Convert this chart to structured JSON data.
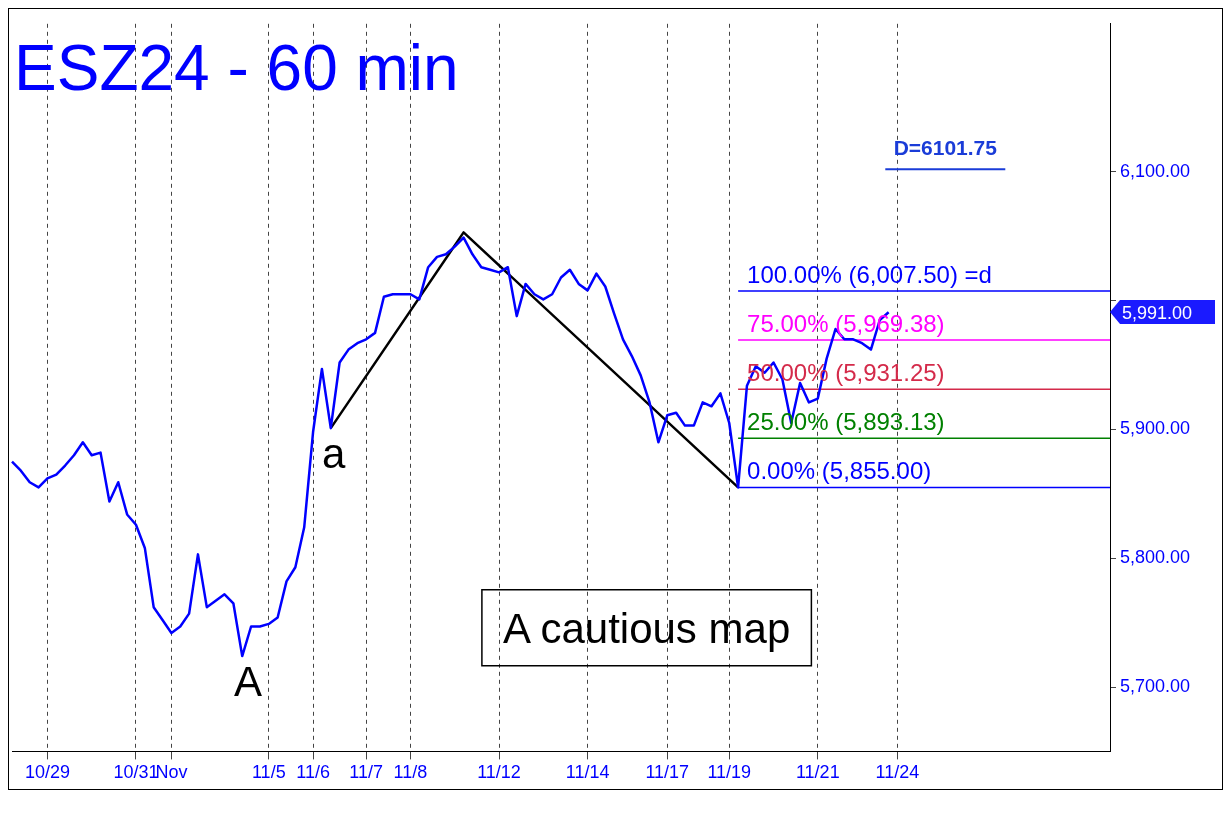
{
  "chart_data": {
    "type": "line",
    "title": "ESZ24 - 60 min",
    "categories": [
      null,
      null,
      null,
      null,
      "10/29",
      null,
      null,
      null,
      null,
      null,
      null,
      null,
      null,
      null,
      "10/31",
      null,
      null,
      null,
      "Nov",
      null,
      null,
      null,
      null,
      null,
      null,
      null,
      null,
      null,
      null,
      "11/5",
      null,
      null,
      null,
      null,
      "11/6",
      null,
      null,
      null,
      null,
      null,
      "11/7",
      null,
      null,
      null,
      null,
      "11/8",
      null,
      null,
      null,
      null,
      null,
      null,
      null,
      null,
      null,
      "11/12",
      null,
      null,
      null,
      null,
      null,
      null,
      null,
      null,
      null,
      "11/14",
      null,
      null,
      null,
      null,
      null,
      null,
      null,
      null,
      "11/17",
      null,
      null,
      null,
      null,
      null,
      null,
      "11/19",
      null,
      null,
      null,
      null,
      null,
      null,
      null,
      null,
      null,
      "11/21",
      null,
      null,
      null,
      null,
      null,
      null,
      null,
      null,
      "11/24",
      null,
      null,
      null,
      null,
      null,
      null,
      null,
      null,
      null,
      null,
      null,
      null,
      null,
      null,
      null,
      null,
      null,
      null,
      null,
      null,
      null,
      null,
      null,
      null
    ],
    "series": [
      {
        "color": "#0000ff",
        "values": [
          5875,
          5868,
          5859,
          5855,
          5862,
          5865,
          5872,
          5880,
          5890,
          5880,
          5882,
          5844,
          5859,
          5834,
          5826,
          5808,
          5762,
          5752,
          5742,
          5747,
          5757,
          5803,
          5762,
          5767,
          5772,
          5765,
          5724,
          5747,
          5747,
          5749,
          5754,
          5782,
          5793,
          5824,
          5898,
          5947,
          5901,
          5952,
          5962,
          5967,
          5970,
          5975,
          6003,
          6005,
          6005,
          6005,
          6001,
          6026,
          6034,
          6036,
          6042,
          6049,
          6036,
          6026,
          6024,
          6022,
          6026,
          5988,
          6013,
          6005,
          6001,
          6005,
          6018,
          6024,
          6013,
          6008,
          6021,
          6011,
          5990,
          5970,
          5957,
          5942,
          5921,
          5890,
          5911,
          5913,
          5903,
          5903,
          5921,
          5918,
          5928,
          5905,
          5855,
          5934,
          5949,
          5944,
          5952,
          5939,
          5905,
          5936,
          5921,
          5924,
          5955,
          5978,
          5970,
          5970,
          5967,
          5962,
          5985,
          5991,
          null,
          null,
          null,
          null,
          null,
          null,
          null,
          null,
          null,
          null,
          null,
          null,
          null,
          null,
          null,
          null,
          null,
          null,
          null,
          null,
          null,
          null,
          null,
          null,
          null
        ]
      },
      {
        "color": "#000000",
        "values": [
          null,
          null,
          null,
          null,
          null,
          null,
          null,
          null,
          null,
          null,
          null,
          null,
          null,
          null,
          null,
          null,
          null,
          null,
          null,
          null,
          null,
          null,
          null,
          null,
          null,
          null,
          null,
          null,
          null,
          null,
          null,
          null,
          null,
          null,
          null,
          null,
          5901,
          null,
          null,
          null,
          null,
          null,
          null,
          null,
          null,
          null,
          null,
          null,
          null,
          null,
          null,
          6053,
          null,
          null,
          null,
          null,
          null,
          null,
          null,
          null,
          null,
          null,
          null,
          null,
          null,
          null,
          null,
          null,
          null,
          null,
          null,
          null,
          null,
          null,
          null,
          null,
          null,
          null,
          null,
          null,
          null,
          null,
          5855,
          null,
          null,
          null,
          null,
          null,
          null,
          null,
          null,
          null,
          null,
          null,
          null,
          null,
          null,
          null,
          null,
          null,
          null,
          null,
          null,
          null,
          null,
          null,
          null,
          null,
          null,
          null,
          null,
          null,
          null,
          null,
          null,
          null,
          null,
          null,
          null,
          null,
          null,
          null,
          null,
          null,
          null
        ]
      }
    ],
    "ylim": [
      5650,
      6215
    ],
    "yticks": [
      {
        "value": 5700,
        "label": "5,700.00"
      },
      {
        "value": 5800,
        "label": "5,800.00"
      },
      {
        "value": 5900,
        "label": "5,900.00"
      },
      {
        "value": 6000,
        "label": null
      },
      {
        "value": 6100,
        "label": "6,100.00"
      }
    ],
    "ref_lines": [
      {
        "axis": "y",
        "value": 6007.5,
        "label": "100.00% (6,007.50) =d",
        "color": "#0000ff"
      },
      {
        "axis": "y",
        "value": 5969.38,
        "label": "75.00% (5,969.38)",
        "color": "#ff00ff"
      },
      {
        "axis": "y",
        "value": 5931.25,
        "label": "50.00% (5,931.25)",
        "color": "#d42a4a"
      },
      {
        "axis": "y",
        "value": 5893.13,
        "label": "25.00% (5,893.13)",
        "color": "#008000"
      },
      {
        "axis": "y",
        "value": 5855,
        "label": "0.00% (5,855.00)",
        "color": "#0000ff"
      }
    ],
    "annotations": [
      "D=6101.75",
      {
        "text": "a",
        "y": 5901
      },
      "A",
      "A cautious map",
      "5,991.00"
    ],
    "grid": "x",
    "legend": false,
    "marker": "none",
    "line_style": "solid"
  }
}
